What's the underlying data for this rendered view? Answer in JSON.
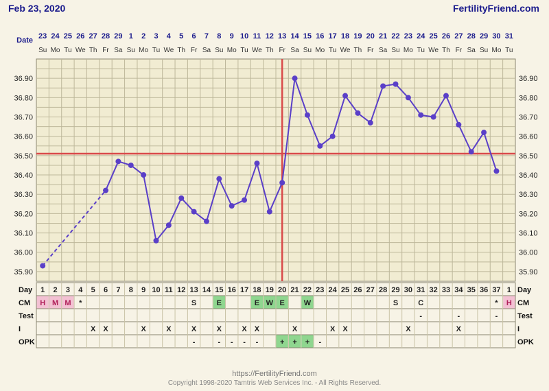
{
  "header": {
    "date": "Feb 23, 2020",
    "brand": "FertilityFriend.com"
  },
  "footer": {
    "url": "https://FertilityFriend.com",
    "copyright": "Copyright 1998-2020 Tamtris Web Services Inc. - All Rights Reserved."
  },
  "labels": {
    "date": "Date",
    "day": "Day",
    "cm": "CM",
    "test": "Test",
    "intercourse": "I",
    "opk": "OPK"
  },
  "colors": {
    "line": "#5a3fc8",
    "marker": "#5a3fc8",
    "reference": "#d94a4a",
    "grid": "#bdb79a",
    "plot_bg": "#f1ecd2",
    "green": "#8fd68f",
    "pink": "#f3c1d3"
  },
  "chart_data": {
    "type": "line",
    "title": "",
    "xlabel": "",
    "ylabel": "",
    "ylim": [
      35.85,
      37.0
    ],
    "yticks": [
      "36.90",
      "36.80",
      "36.70",
      "36.60",
      "36.50",
      "36.40",
      "36.30",
      "36.20",
      "36.10",
      "36.00",
      "35.90"
    ],
    "dates": [
      "23",
      "24",
      "25",
      "26",
      "27",
      "28",
      "29",
      "1",
      "2",
      "3",
      "4",
      "5",
      "6",
      "7",
      "8",
      "9",
      "10",
      "11",
      "12",
      "13",
      "14",
      "15",
      "16",
      "17",
      "18",
      "19",
      "20",
      "21",
      "22",
      "23",
      "24",
      "25",
      "26",
      "27",
      "28",
      "29",
      "30",
      "31"
    ],
    "weekdays": [
      "Su",
      "Mo",
      "Tu",
      "We",
      "Th",
      "Fr",
      "Sa",
      "Su",
      "Mo",
      "Tu",
      "We",
      "Th",
      "Fr",
      "Sa",
      "Su",
      "Mo",
      "Tu",
      "We",
      "Th",
      "Fr",
      "Sa",
      "Su",
      "Mo",
      "Tu",
      "We",
      "Th",
      "Fr",
      "Sa",
      "Su",
      "Mo",
      "Tu",
      "We",
      "Th",
      "Fr",
      "Sa",
      "Su",
      "Mo",
      "Tu"
    ],
    "cycle_days": [
      "1",
      "2",
      "3",
      "4",
      "5",
      "6",
      "7",
      "8",
      "9",
      "10",
      "11",
      "12",
      "13",
      "14",
      "15",
      "16",
      "17",
      "18",
      "19",
      "20",
      "21",
      "22",
      "23",
      "24",
      "25",
      "26",
      "27",
      "28",
      "29",
      "30",
      "31",
      "32",
      "33",
      "34",
      "35",
      "36",
      "37",
      "1"
    ],
    "temperatures": [
      35.93,
      null,
      null,
      null,
      null,
      36.32,
      36.47,
      36.45,
      36.4,
      36.06,
      36.14,
      36.28,
      36.21,
      36.16,
      36.38,
      36.24,
      36.27,
      36.46,
      36.21,
      36.36,
      36.9,
      36.71,
      36.55,
      36.6,
      36.81,
      36.72,
      36.67,
      36.86,
      36.87,
      36.8,
      36.71,
      36.7,
      36.81,
      36.66,
      36.52,
      36.62,
      36.42,
      null
    ],
    "coverline": 36.51,
    "ovulation_day": "20",
    "cm": [
      "H",
      "M",
      "M",
      "*",
      "",
      "",
      "",
      "",
      "",
      "",
      "",
      "",
      "S",
      "",
      "E",
      "",
      "",
      "E",
      "W",
      "E",
      "",
      "W",
      "",
      "",
      "",
      "",
      "",
      "",
      "S",
      "",
      "C",
      "",
      "",
      "",
      "",
      "",
      "*",
      "H"
    ],
    "test": [
      "",
      "",
      "",
      "",
      "",
      "",
      "",
      "",
      "",
      "",
      "",
      "",
      "",
      "",
      "",
      "",
      "",
      "",
      "",
      "",
      "",
      "",
      "",
      "",
      "",
      "",
      "",
      "",
      "",
      "",
      "-",
      "",
      "",
      "-",
      "",
      "",
      "-",
      ""
    ],
    "intercourse": [
      "",
      "",
      "",
      "",
      "X",
      "X",
      "",
      "",
      "X",
      "",
      "X",
      "",
      "X",
      "",
      "X",
      "",
      "X",
      "X",
      "",
      "",
      "X",
      "",
      "",
      "X",
      "X",
      "",
      "",
      "",
      "",
      "X",
      "",
      "",
      "",
      "X",
      "",
      "",
      "",
      ""
    ],
    "opk": [
      "",
      "",
      "",
      "",
      "",
      "",
      "",
      "",
      "",
      "",
      "",
      "",
      "-",
      "",
      "-",
      "-",
      "-",
      "-",
      "",
      "+",
      "+",
      "+",
      "-",
      "",
      "",
      "",
      "",
      "",
      "",
      "",
      "",
      "",
      "",
      "",
      "",
      "",
      "",
      ""
    ]
  }
}
